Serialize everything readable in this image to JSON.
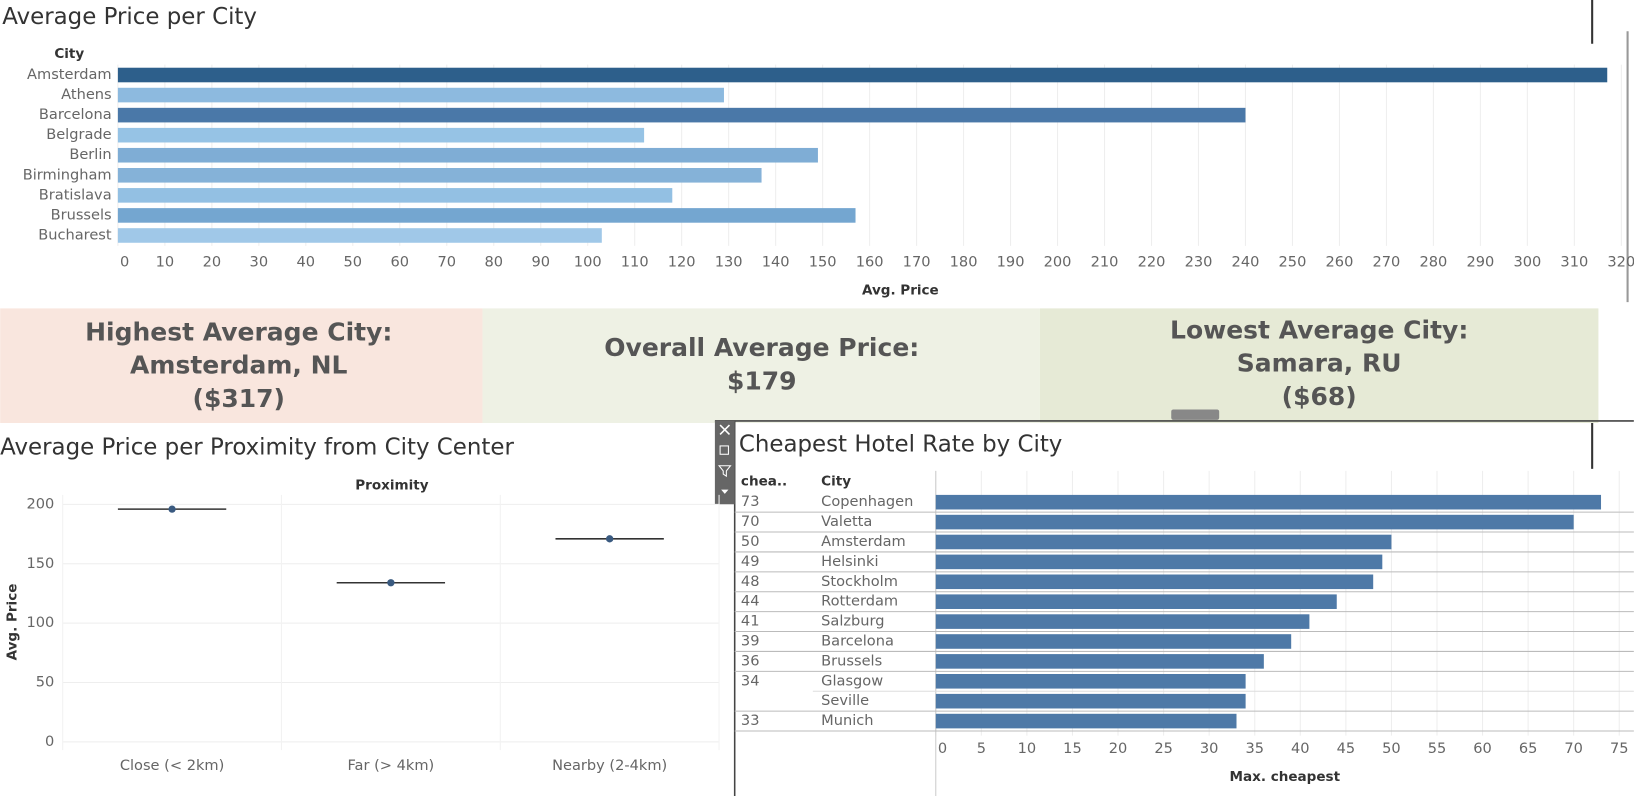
{
  "chart_data": [
    {
      "type": "bar",
      "title": "Average Price per City",
      "category_header": "City",
      "xlabel": "Avg. Price",
      "categories": [
        "Amsterdam",
        "Athens",
        "Barcelona",
        "Belgrade",
        "Berlin",
        "Birmingham",
        "Bratislava",
        "Brussels",
        "Bucharest"
      ],
      "values": [
        317,
        129,
        240,
        112,
        149,
        137,
        118,
        157,
        103
      ],
      "colors": [
        "#2d5f8b",
        "#8dbadf",
        "#4a78a8",
        "#96c3e5",
        "#7fadd5",
        "#85b2d8",
        "#93c0e3",
        "#74a6d0",
        "#a0c8e8"
      ],
      "xlim": [
        0,
        320
      ],
      "xticks": [
        0,
        10,
        20,
        30,
        40,
        50,
        60,
        70,
        80,
        90,
        100,
        110,
        120,
        130,
        140,
        150,
        160,
        170,
        180,
        190,
        200,
        210,
        220,
        230,
        240,
        250,
        260,
        270,
        280,
        290,
        300,
        310,
        320
      ],
      "grid": true
    },
    {
      "type": "dot",
      "title": "Average Price per Proximity from City Center",
      "category_header": "Proximity",
      "ylabel": "Avg. Price",
      "categories": [
        "Close (< 2km)",
        "Far (> 4km)",
        "Nearby (2-4km)"
      ],
      "values": [
        196,
        134,
        171
      ],
      "color": "#3a5a80",
      "ylim": [
        -7,
        208
      ],
      "yticks": [
        0,
        50,
        100,
        150,
        200
      ],
      "grid": true
    },
    {
      "type": "bar",
      "title": "Cheapest Hotel Rate by City",
      "value_header": "chea..",
      "category_header": "City",
      "xlabel": "Max. cheapest",
      "categories": [
        "Copenhagen",
        "Valetta",
        "Amsterdam",
        "Helsinki",
        "Stockholm",
        "Rotterdam",
        "Salzburg",
        "Barcelona",
        "Brussels",
        "Glasgow",
        "Seville",
        "Munich"
      ],
      "values": [
        73,
        70,
        50,
        49,
        48,
        44,
        41,
        39,
        36,
        34,
        34,
        33
      ],
      "color": "#4e79a7",
      "xlim": [
        0,
        75
      ],
      "xticks": [
        0,
        5,
        10,
        15,
        20,
        25,
        30,
        35,
        40,
        45,
        50,
        55,
        60,
        65,
        70,
        75
      ],
      "grid": true
    }
  ],
  "kpis": [
    {
      "lines": [
        "Highest Average City:",
        "Amsterdam, NL",
        "($317)"
      ]
    },
    {
      "lines": [
        "Overall Average Price:",
        "$179"
      ]
    },
    {
      "lines": [
        "Lowest Average City:",
        "Samara, RU",
        "($68)"
      ]
    }
  ]
}
